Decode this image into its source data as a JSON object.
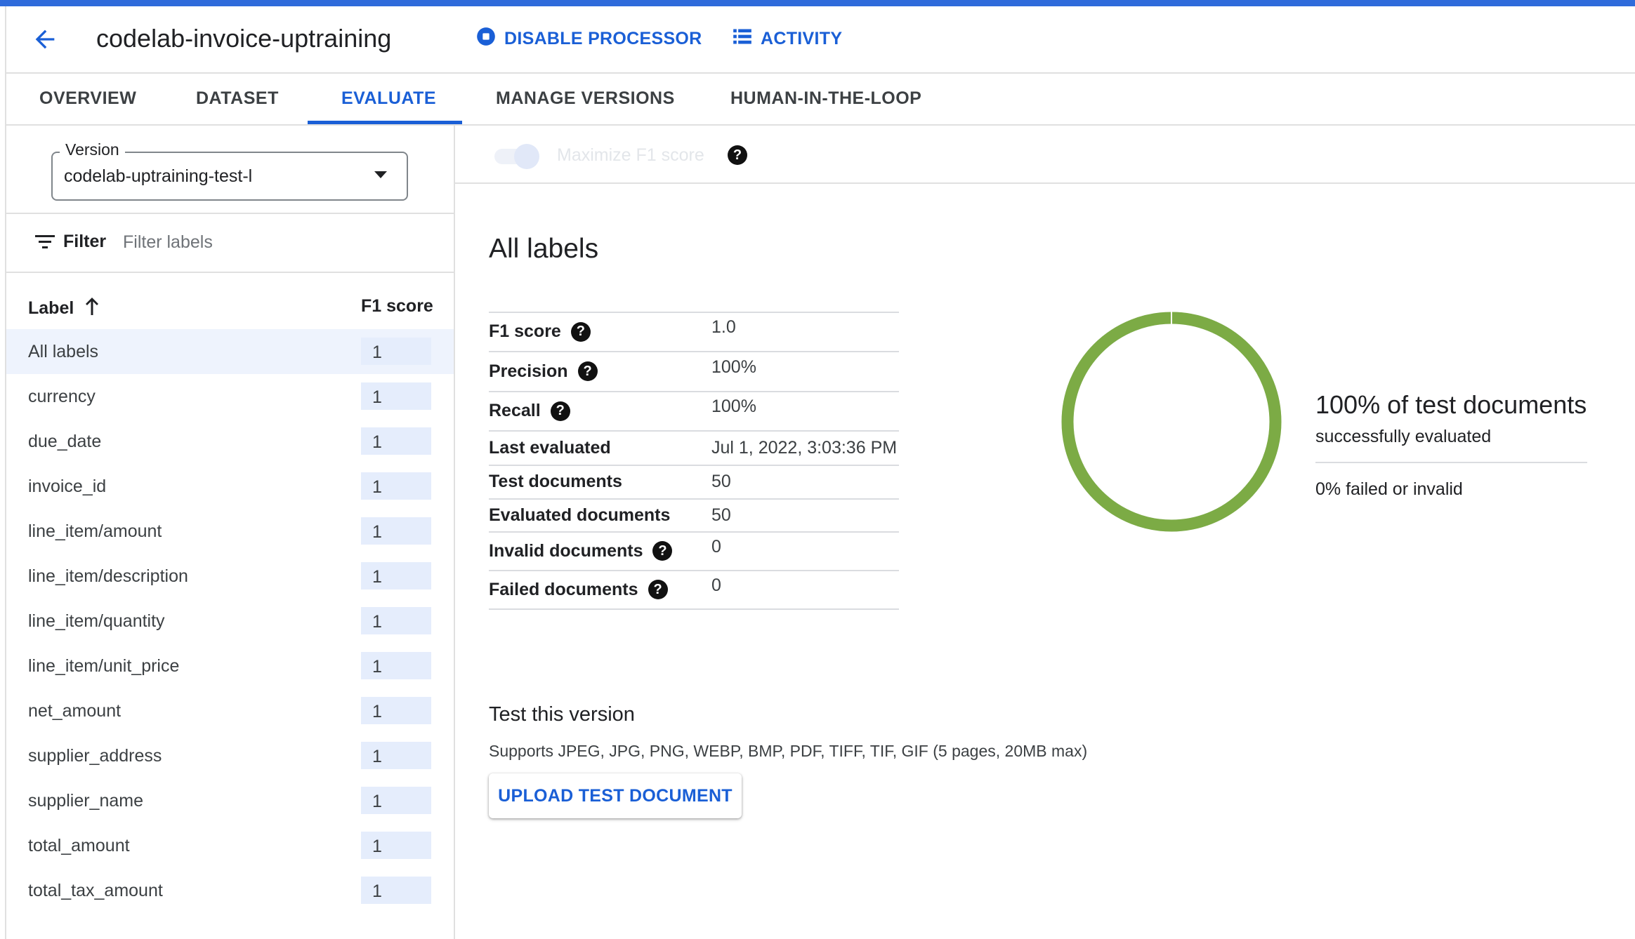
{
  "header": {
    "title": "codelab-invoice-uptraining",
    "disable_processor": "DISABLE PROCESSOR",
    "activity": "ACTIVITY"
  },
  "tabs": [
    {
      "label": "OVERVIEW"
    },
    {
      "label": "DATASET"
    },
    {
      "label": "EVALUATE",
      "active": true
    },
    {
      "label": "MANAGE VERSIONS"
    },
    {
      "label": "HUMAN-IN-THE-LOOP"
    }
  ],
  "sidebar": {
    "version_label": "Version",
    "version_value": "codelab-uptraining-test-l",
    "filter_label": "Filter",
    "filter_placeholder": "Filter labels",
    "col_label": "Label",
    "col_f1": "F1 score",
    "rows": [
      {
        "label": "All labels",
        "f1": "1",
        "selected": true
      },
      {
        "label": "currency",
        "f1": "1"
      },
      {
        "label": "due_date",
        "f1": "1"
      },
      {
        "label": "invoice_id",
        "f1": "1"
      },
      {
        "label": "line_item/amount",
        "f1": "1"
      },
      {
        "label": "line_item/description",
        "f1": "1"
      },
      {
        "label": "line_item/quantity",
        "f1": "1"
      },
      {
        "label": "line_item/unit_price",
        "f1": "1"
      },
      {
        "label": "net_amount",
        "f1": "1"
      },
      {
        "label": "supplier_address",
        "f1": "1"
      },
      {
        "label": "supplier_name",
        "f1": "1"
      },
      {
        "label": "total_amount",
        "f1": "1"
      },
      {
        "label": "total_tax_amount",
        "f1": "1"
      }
    ]
  },
  "main": {
    "maximize_label": "Maximize F1 score",
    "maximize_enabled": false,
    "section_title": "All labels",
    "metrics": [
      {
        "label": "F1 score",
        "value": "1.0",
        "help": true
      },
      {
        "label": "Precision",
        "value": "100%",
        "help": true
      },
      {
        "label": "Recall",
        "value": "100%",
        "help": true
      },
      {
        "label": "Last evaluated",
        "value": "Jul 1, 2022, 3:03:36 PM",
        "help": false
      },
      {
        "label": "Test documents",
        "value": "50",
        "help": false
      },
      {
        "label": "Evaluated documents",
        "value": "50",
        "help": false
      },
      {
        "label": "Invalid documents",
        "value": "0",
        "help": true
      },
      {
        "label": "Failed documents",
        "value": "0",
        "help": true
      }
    ],
    "donut": {
      "success_fraction": 1.0,
      "success_color": "#7cab45"
    },
    "success_text": "100% of test documents",
    "success_sub": "successfully evaluated",
    "failed_text": "0% failed or invalid",
    "test_title": "Test this version",
    "test_sub": "Supports JPEG, JPG, PNG, WEBP, BMP, PDF, TIFF, TIF, GIF (5 pages, 20MB max)",
    "upload_label": "UPLOAD TEST DOCUMENT"
  },
  "colors": {
    "accent": "#1a5fd6",
    "top_bar": "#2f6bdb",
    "selected_row": "#eef3fd"
  }
}
